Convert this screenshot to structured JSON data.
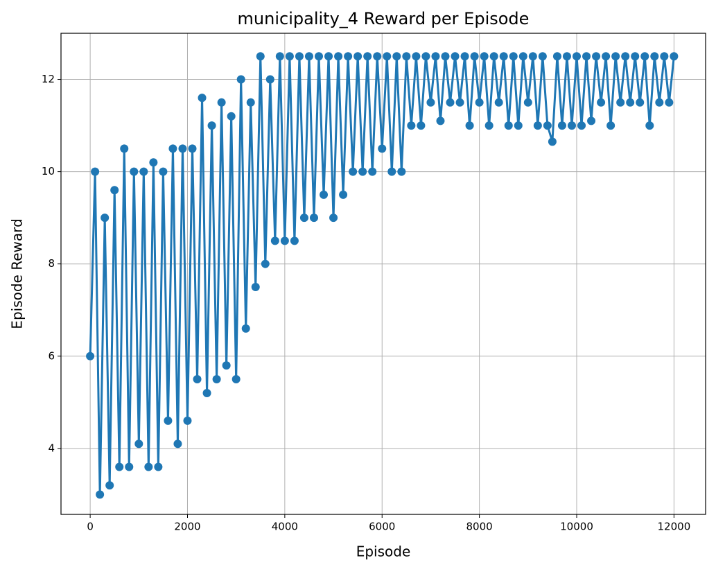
{
  "chart_data": {
    "type": "line",
    "title": "municipality_4 Reward per Episode",
    "x_label": "Episode",
    "y_label": "Episode Reward",
    "x": [
      0,
      100,
      200,
      300,
      400,
      500,
      600,
      700,
      800,
      900,
      1000,
      1100,
      1200,
      1300,
      1400,
      1500,
      1600,
      1700,
      1800,
      1900,
      2000,
      2100,
      2200,
      2300,
      2400,
      2500,
      2600,
      2700,
      2800,
      2900,
      3000,
      3100,
      3200,
      3300,
      3400,
      3500,
      3600,
      3700,
      3800,
      3900,
      4000,
      4100,
      4200,
      4300,
      4400,
      4500,
      4600,
      4700,
      4800,
      4900,
      5000,
      5100,
      5200,
      5300,
      5400,
      5500,
      5600,
      5700,
      5800,
      5900,
      6000,
      6100,
      6200,
      6300,
      6400,
      6500,
      6600,
      6700,
      6800,
      6900,
      7000,
      7100,
      7200,
      7300,
      7400,
      7500,
      7600,
      7700,
      7800,
      7900,
      8000,
      8100,
      8200,
      8300,
      8400,
      8500,
      8600,
      8700,
      8800,
      8900,
      9000,
      9100,
      9200,
      9300,
      9400,
      9500,
      9600,
      9700,
      9800,
      9900,
      10000,
      10100,
      10200,
      10300,
      10400,
      10500,
      10600,
      10700,
      10800,
      10900,
      11000,
      11100,
      11200,
      11300,
      11400,
      11500,
      11600,
      11700,
      11800,
      11900,
      12000
    ],
    "series": [
      {
        "name": "Episode Reward",
        "color": "#1f77b4",
        "values": [
          6.0,
          10.0,
          3.0,
          9.0,
          3.2,
          9.6,
          3.6,
          10.5,
          3.6,
          10.0,
          4.1,
          10.0,
          3.6,
          10.2,
          3.6,
          10.0,
          4.6,
          10.5,
          4.1,
          10.5,
          4.6,
          10.5,
          5.5,
          11.6,
          5.2,
          11.0,
          5.5,
          11.5,
          5.8,
          11.2,
          5.5,
          12.0,
          6.6,
          11.5,
          7.5,
          12.5,
          8.0,
          12.0,
          8.5,
          12.5,
          8.5,
          12.5,
          8.5,
          12.5,
          9.0,
          12.5,
          9.0,
          12.5,
          9.5,
          12.5,
          9.0,
          12.5,
          9.5,
          12.5,
          10.0,
          12.5,
          10.0,
          12.5,
          10.0,
          12.5,
          10.5,
          12.5,
          10.0,
          12.5,
          10.0,
          12.5,
          11.0,
          12.5,
          11.0,
          12.5,
          11.5,
          12.5,
          11.1,
          12.5,
          11.5,
          12.5,
          11.5,
          12.5,
          11.0,
          12.5,
          11.5,
          12.5,
          11.0,
          12.5,
          11.5,
          12.5,
          11.0,
          12.5,
          11.0,
          12.5,
          11.5,
          12.5,
          11.0,
          12.5,
          11.0,
          10.65,
          12.5,
          11.0,
          12.5,
          11.0,
          12.5,
          11.0,
          12.5,
          11.1,
          12.5,
          11.5,
          12.5,
          11.0,
          12.5,
          11.5,
          12.5,
          11.5,
          12.5,
          11.5,
          12.5,
          11.0,
          12.5,
          11.5,
          12.5,
          11.5,
          12.5
        ]
      }
    ],
    "xlim": [
      -600,
      12650
    ],
    "ylim": [
      2.57,
      13.0
    ],
    "xticks": [
      0,
      2000,
      4000,
      6000,
      8000,
      10000,
      12000
    ],
    "yticks": [
      4,
      6,
      8,
      10,
      12
    ],
    "grid": true
  }
}
